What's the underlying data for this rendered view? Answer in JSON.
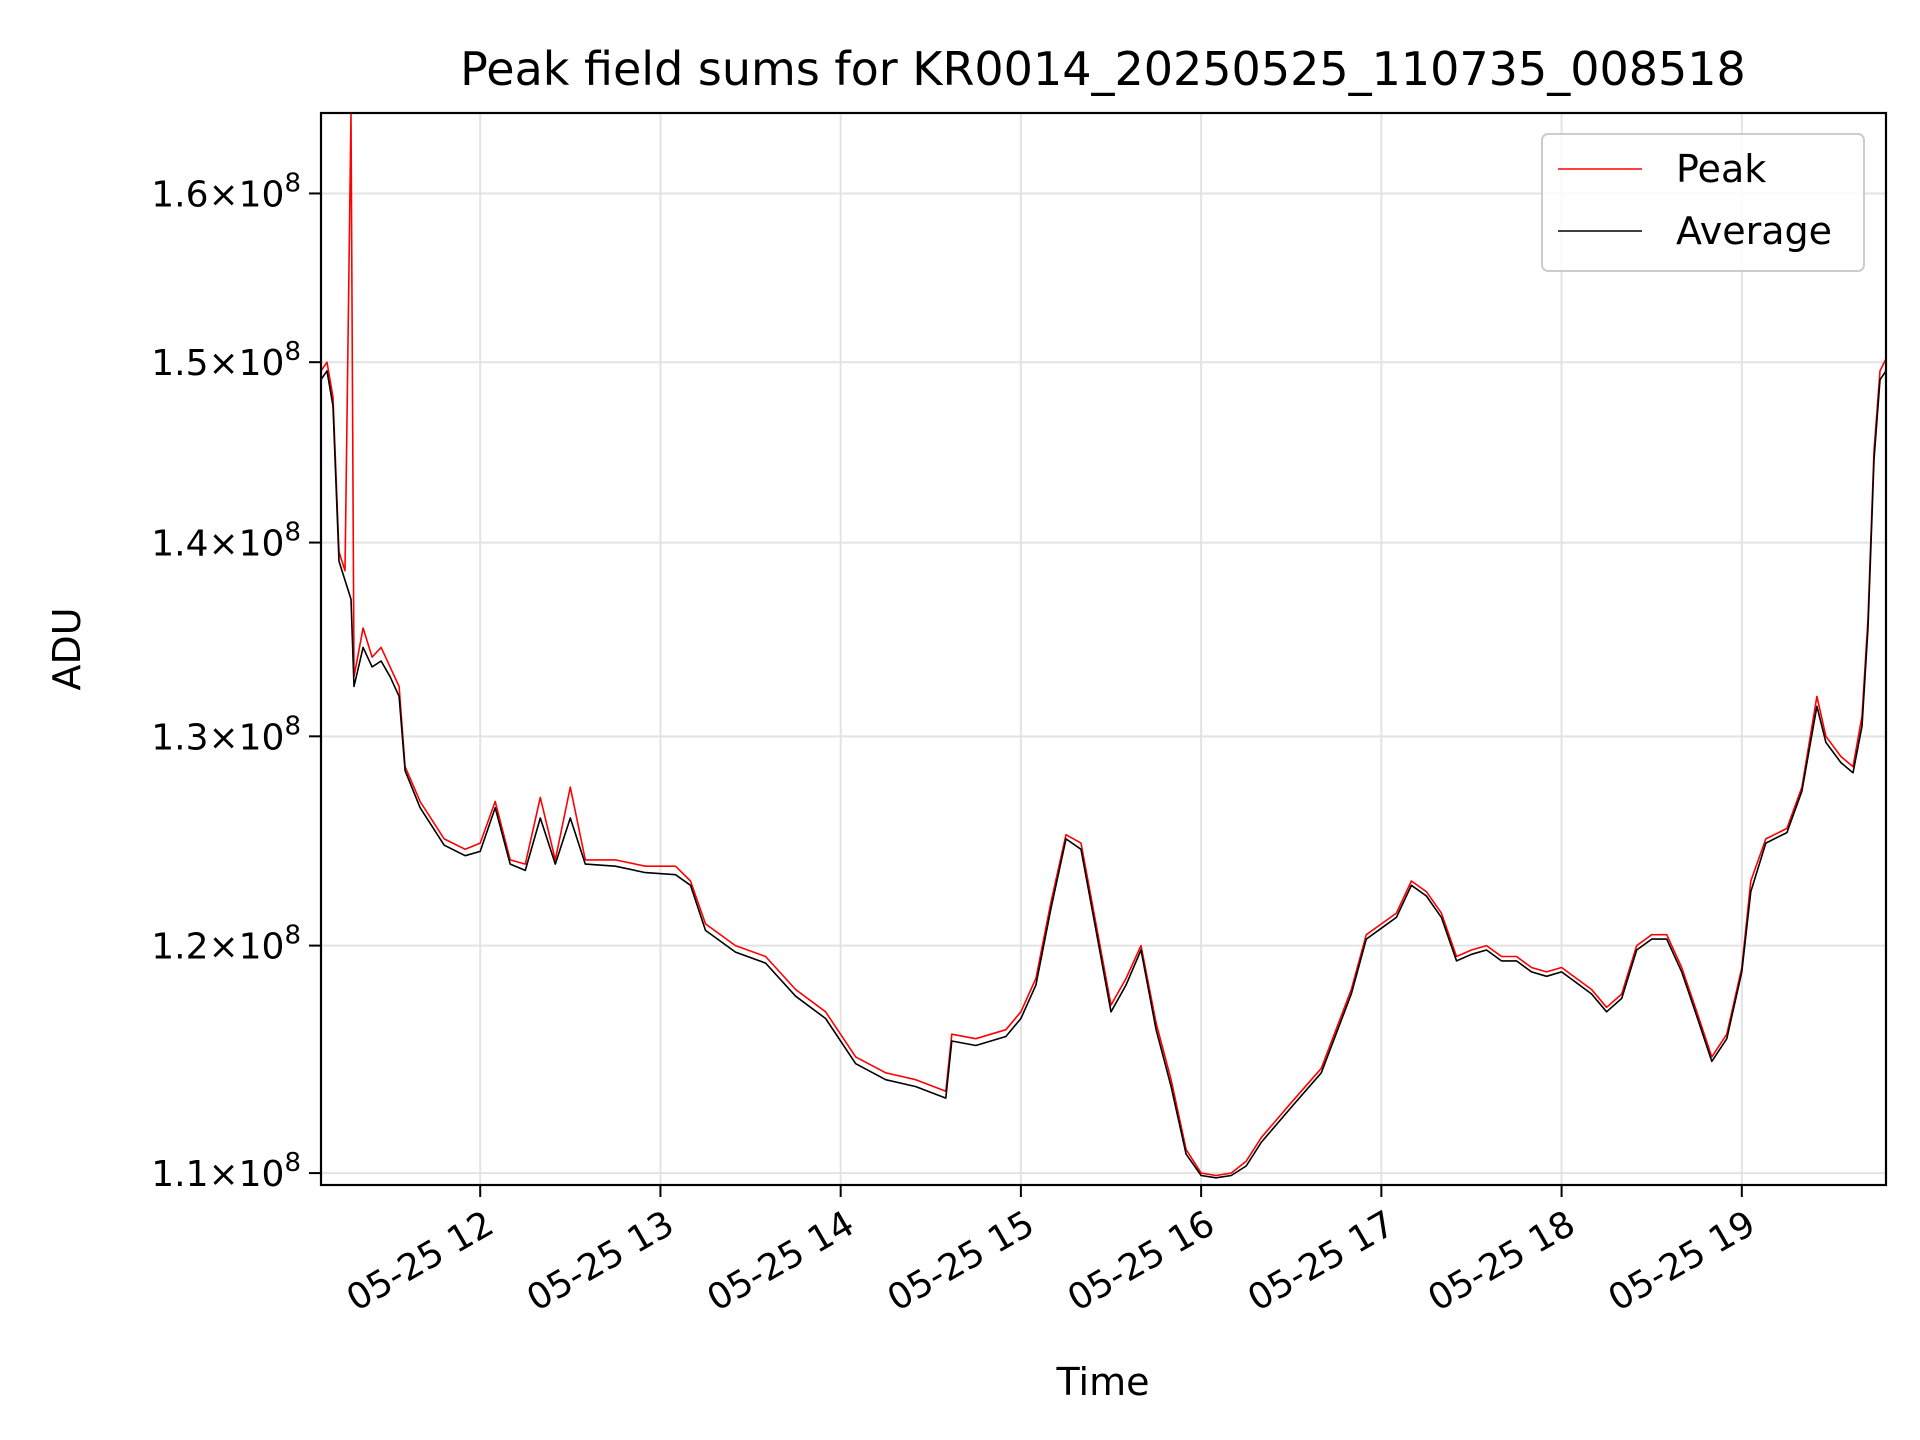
{
  "chart_data": {
    "type": "line",
    "title": "Peak field sums for KR0014_20250525_110735_008518",
    "xlabel": "Time",
    "ylabel": "ADU",
    "y_scale": "log",
    "grid": true,
    "legend_position": "top-right",
    "xlim": [
      "2025-05-25 11:07",
      "2025-05-25 19:48"
    ],
    "ylim": [
      109500000,
      165000000
    ],
    "x_ticks": [
      "2025-05-25 12:00",
      "2025-05-25 13:00",
      "2025-05-25 14:00",
      "2025-05-25 15:00",
      "2025-05-25 16:00",
      "2025-05-25 17:00",
      "2025-05-25 18:00",
      "2025-05-25 19:00"
    ],
    "x_tick_labels": [
      "05-25 12",
      "05-25 13",
      "05-25 14",
      "05-25 15",
      "05-25 16",
      "05-25 17",
      "05-25 18",
      "05-25 19"
    ],
    "y_ticks": [
      {
        "value": 110000000,
        "mantissa": "1.1",
        "exponent": "8"
      },
      {
        "value": 120000000,
        "mantissa": "1.2",
        "exponent": "8"
      },
      {
        "value": 130000000,
        "mantissa": "1.3",
        "exponent": "8"
      },
      {
        "value": 140000000,
        "mantissa": "1.4",
        "exponent": "8"
      },
      {
        "value": 150000000,
        "mantissa": "1.5",
        "exponent": "8"
      },
      {
        "value": 160000000,
        "mantissa": "1.6",
        "exponent": "8"
      }
    ],
    "series": [
      {
        "name": "Peak",
        "color": "#ff0000",
        "points": [
          [
            "2025-05-25 11:07",
            149500000
          ],
          [
            "2025-05-25 11:09",
            150000000
          ],
          [
            "2025-05-25 11:11",
            148000000
          ],
          [
            "2025-05-25 11:13",
            139500000
          ],
          [
            "2025-05-25 11:15",
            138500000
          ],
          [
            "2025-05-25 11:17",
            165000000
          ],
          [
            "2025-05-25 11:18",
            133000000
          ],
          [
            "2025-05-25 11:21",
            135500000
          ],
          [
            "2025-05-25 11:24",
            134000000
          ],
          [
            "2025-05-25 11:27",
            134500000
          ],
          [
            "2025-05-25 11:30",
            133500000
          ],
          [
            "2025-05-25 11:33",
            132500000
          ],
          [
            "2025-05-25 11:35",
            128500000
          ],
          [
            "2025-05-25 11:40",
            126800000
          ],
          [
            "2025-05-25 11:48",
            125000000
          ],
          [
            "2025-05-25 11:55",
            124500000
          ],
          [
            "2025-05-25 12:00",
            124800000
          ],
          [
            "2025-05-25 12:05",
            126800000
          ],
          [
            "2025-05-25 12:10",
            124000000
          ],
          [
            "2025-05-25 12:15",
            123800000
          ],
          [
            "2025-05-25 12:20",
            127000000
          ],
          [
            "2025-05-25 12:25",
            124000000
          ],
          [
            "2025-05-25 12:30",
            127500000
          ],
          [
            "2025-05-25 12:35",
            124000000
          ],
          [
            "2025-05-25 12:45",
            124000000
          ],
          [
            "2025-05-25 12:55",
            123700000
          ],
          [
            "2025-05-25 13:05",
            123700000
          ],
          [
            "2025-05-25 13:10",
            123000000
          ],
          [
            "2025-05-25 13:15",
            121000000
          ],
          [
            "2025-05-25 13:25",
            120000000
          ],
          [
            "2025-05-25 13:35",
            119500000
          ],
          [
            "2025-05-25 13:45",
            118000000
          ],
          [
            "2025-05-25 13:55",
            117000000
          ],
          [
            "2025-05-25 14:05",
            115000000
          ],
          [
            "2025-05-25 14:15",
            114300000
          ],
          [
            "2025-05-25 14:25",
            114000000
          ],
          [
            "2025-05-25 14:35",
            113500000
          ],
          [
            "2025-05-25 14:37",
            116000000
          ],
          [
            "2025-05-25 14:45",
            115800000
          ],
          [
            "2025-05-25 14:55",
            116200000
          ],
          [
            "2025-05-25 15:00",
            117000000
          ],
          [
            "2025-05-25 15:05",
            118500000
          ],
          [
            "2025-05-25 15:10",
            122000000
          ],
          [
            "2025-05-25 15:15",
            125200000
          ],
          [
            "2025-05-25 15:20",
            124800000
          ],
          [
            "2025-05-25 15:25",
            121000000
          ],
          [
            "2025-05-25 15:30",
            117300000
          ],
          [
            "2025-05-25 15:35",
            118500000
          ],
          [
            "2025-05-25 15:40",
            120000000
          ],
          [
            "2025-05-25 15:45",
            116500000
          ],
          [
            "2025-05-25 15:50",
            114000000
          ],
          [
            "2025-05-25 15:55",
            111000000
          ],
          [
            "2025-05-25 16:00",
            110000000
          ],
          [
            "2025-05-25 16:05",
            109900000
          ],
          [
            "2025-05-25 16:10",
            110000000
          ],
          [
            "2025-05-25 16:15",
            110500000
          ],
          [
            "2025-05-25 16:20",
            111500000
          ],
          [
            "2025-05-25 16:30",
            113000000
          ],
          [
            "2025-05-25 16:40",
            114500000
          ],
          [
            "2025-05-25 16:50",
            118000000
          ],
          [
            "2025-05-25 16:55",
            120500000
          ],
          [
            "2025-05-25 17:00",
            121000000
          ],
          [
            "2025-05-25 17:05",
            121500000
          ],
          [
            "2025-05-25 17:10",
            123000000
          ],
          [
            "2025-05-25 17:15",
            122500000
          ],
          [
            "2025-05-25 17:20",
            121500000
          ],
          [
            "2025-05-25 17:25",
            119500000
          ],
          [
            "2025-05-25 17:30",
            119800000
          ],
          [
            "2025-05-25 17:35",
            120000000
          ],
          [
            "2025-05-25 17:40",
            119500000
          ],
          [
            "2025-05-25 17:45",
            119500000
          ],
          [
            "2025-05-25 17:50",
            119000000
          ],
          [
            "2025-05-25 17:55",
            118800000
          ],
          [
            "2025-05-25 18:00",
            119000000
          ],
          [
            "2025-05-25 18:05",
            118500000
          ],
          [
            "2025-05-25 18:10",
            118000000
          ],
          [
            "2025-05-25 18:15",
            117200000
          ],
          [
            "2025-05-25 18:20",
            117800000
          ],
          [
            "2025-05-25 18:25",
            120000000
          ],
          [
            "2025-05-25 18:30",
            120500000
          ],
          [
            "2025-05-25 18:35",
            120500000
          ],
          [
            "2025-05-25 18:40",
            119000000
          ],
          [
            "2025-05-25 18:45",
            117000000
          ],
          [
            "2025-05-25 18:50",
            115000000
          ],
          [
            "2025-05-25 18:55",
            116000000
          ],
          [
            "2025-05-25 19:00",
            119000000
          ],
          [
            "2025-05-25 19:03",
            123000000
          ],
          [
            "2025-05-25 19:08",
            125000000
          ],
          [
            "2025-05-25 19:15",
            125500000
          ],
          [
            "2025-05-25 19:20",
            127500000
          ],
          [
            "2025-05-25 19:25",
            132000000
          ],
          [
            "2025-05-25 19:28",
            130000000
          ],
          [
            "2025-05-25 19:33",
            129000000
          ],
          [
            "2025-05-25 19:37",
            128500000
          ],
          [
            "2025-05-25 19:40",
            131000000
          ],
          [
            "2025-05-25 19:42",
            136000000
          ],
          [
            "2025-05-25 19:44",
            145000000
          ],
          [
            "2025-05-25 19:46",
            149500000
          ],
          [
            "2025-05-25 19:48",
            150200000
          ]
        ]
      },
      {
        "name": "Average",
        "color": "#000000",
        "points": [
          [
            "2025-05-25 11:07",
            149000000
          ],
          [
            "2025-05-25 11:09",
            149500000
          ],
          [
            "2025-05-25 11:11",
            147500000
          ],
          [
            "2025-05-25 11:13",
            139000000
          ],
          [
            "2025-05-25 11:15",
            138000000
          ],
          [
            "2025-05-25 11:17",
            137000000
          ],
          [
            "2025-05-25 11:18",
            132500000
          ],
          [
            "2025-05-25 11:21",
            134500000
          ],
          [
            "2025-05-25 11:24",
            133500000
          ],
          [
            "2025-05-25 11:27",
            133800000
          ],
          [
            "2025-05-25 11:30",
            133000000
          ],
          [
            "2025-05-25 11:33",
            132000000
          ],
          [
            "2025-05-25 11:35",
            128300000
          ],
          [
            "2025-05-25 11:40",
            126500000
          ],
          [
            "2025-05-25 11:48",
            124700000
          ],
          [
            "2025-05-25 11:55",
            124200000
          ],
          [
            "2025-05-25 12:00",
            124400000
          ],
          [
            "2025-05-25 12:05",
            126500000
          ],
          [
            "2025-05-25 12:10",
            123800000
          ],
          [
            "2025-05-25 12:15",
            123500000
          ],
          [
            "2025-05-25 12:20",
            126000000
          ],
          [
            "2025-05-25 12:25",
            123800000
          ],
          [
            "2025-05-25 12:30",
            126000000
          ],
          [
            "2025-05-25 12:35",
            123800000
          ],
          [
            "2025-05-25 12:45",
            123700000
          ],
          [
            "2025-05-25 12:55",
            123400000
          ],
          [
            "2025-05-25 13:05",
            123300000
          ],
          [
            "2025-05-25 13:10",
            122800000
          ],
          [
            "2025-05-25 13:15",
            120700000
          ],
          [
            "2025-05-25 13:25",
            119700000
          ],
          [
            "2025-05-25 13:35",
            119200000
          ],
          [
            "2025-05-25 13:45",
            117700000
          ],
          [
            "2025-05-25 13:55",
            116700000
          ],
          [
            "2025-05-25 14:05",
            114700000
          ],
          [
            "2025-05-25 14:15",
            114000000
          ],
          [
            "2025-05-25 14:25",
            113700000
          ],
          [
            "2025-05-25 14:35",
            113200000
          ],
          [
            "2025-05-25 14:37",
            115700000
          ],
          [
            "2025-05-25 14:45",
            115500000
          ],
          [
            "2025-05-25 14:55",
            115900000
          ],
          [
            "2025-05-25 15:00",
            116700000
          ],
          [
            "2025-05-25 15:05",
            118200000
          ],
          [
            "2025-05-25 15:10",
            121700000
          ],
          [
            "2025-05-25 15:15",
            125000000
          ],
          [
            "2025-05-25 15:20",
            124500000
          ],
          [
            "2025-05-25 15:25",
            120700000
          ],
          [
            "2025-05-25 15:30",
            117000000
          ],
          [
            "2025-05-25 15:35",
            118200000
          ],
          [
            "2025-05-25 15:40",
            119800000
          ],
          [
            "2025-05-25 15:45",
            116200000
          ],
          [
            "2025-05-25 15:50",
            113700000
          ],
          [
            "2025-05-25 15:55",
            110800000
          ],
          [
            "2025-05-25 16:00",
            109900000
          ],
          [
            "2025-05-25 16:05",
            109800000
          ],
          [
            "2025-05-25 16:10",
            109900000
          ],
          [
            "2025-05-25 16:15",
            110300000
          ],
          [
            "2025-05-25 16:20",
            111300000
          ],
          [
            "2025-05-25 16:30",
            112800000
          ],
          [
            "2025-05-25 16:40",
            114300000
          ],
          [
            "2025-05-25 16:50",
            117800000
          ],
          [
            "2025-05-25 16:55",
            120300000
          ],
          [
            "2025-05-25 17:00",
            120800000
          ],
          [
            "2025-05-25 17:05",
            121300000
          ],
          [
            "2025-05-25 17:10",
            122800000
          ],
          [
            "2025-05-25 17:15",
            122300000
          ],
          [
            "2025-05-25 17:20",
            121300000
          ],
          [
            "2025-05-25 17:25",
            119300000
          ],
          [
            "2025-05-25 17:30",
            119600000
          ],
          [
            "2025-05-25 17:35",
            119800000
          ],
          [
            "2025-05-25 17:40",
            119300000
          ],
          [
            "2025-05-25 17:45",
            119300000
          ],
          [
            "2025-05-25 17:50",
            118800000
          ],
          [
            "2025-05-25 17:55",
            118600000
          ],
          [
            "2025-05-25 18:00",
            118800000
          ],
          [
            "2025-05-25 18:05",
            118300000
          ],
          [
            "2025-05-25 18:10",
            117800000
          ],
          [
            "2025-05-25 18:15",
            117000000
          ],
          [
            "2025-05-25 18:20",
            117600000
          ],
          [
            "2025-05-25 18:25",
            119800000
          ],
          [
            "2025-05-25 18:30",
            120300000
          ],
          [
            "2025-05-25 18:35",
            120300000
          ],
          [
            "2025-05-25 18:40",
            118800000
          ],
          [
            "2025-05-25 18:45",
            116800000
          ],
          [
            "2025-05-25 18:50",
            114800000
          ],
          [
            "2025-05-25 18:55",
            115800000
          ],
          [
            "2025-05-25 19:00",
            118800000
          ],
          [
            "2025-05-25 19:03",
            122500000
          ],
          [
            "2025-05-25 19:08",
            124800000
          ],
          [
            "2025-05-25 19:15",
            125300000
          ],
          [
            "2025-05-25 19:20",
            127300000
          ],
          [
            "2025-05-25 19:25",
            131500000
          ],
          [
            "2025-05-25 19:28",
            129700000
          ],
          [
            "2025-05-25 19:33",
            128700000
          ],
          [
            "2025-05-25 19:37",
            128200000
          ],
          [
            "2025-05-25 19:40",
            130500000
          ],
          [
            "2025-05-25 19:42",
            135500000
          ],
          [
            "2025-05-25 19:44",
            144500000
          ],
          [
            "2025-05-25 19:46",
            149000000
          ],
          [
            "2025-05-25 19:48",
            149500000
          ]
        ]
      }
    ]
  }
}
